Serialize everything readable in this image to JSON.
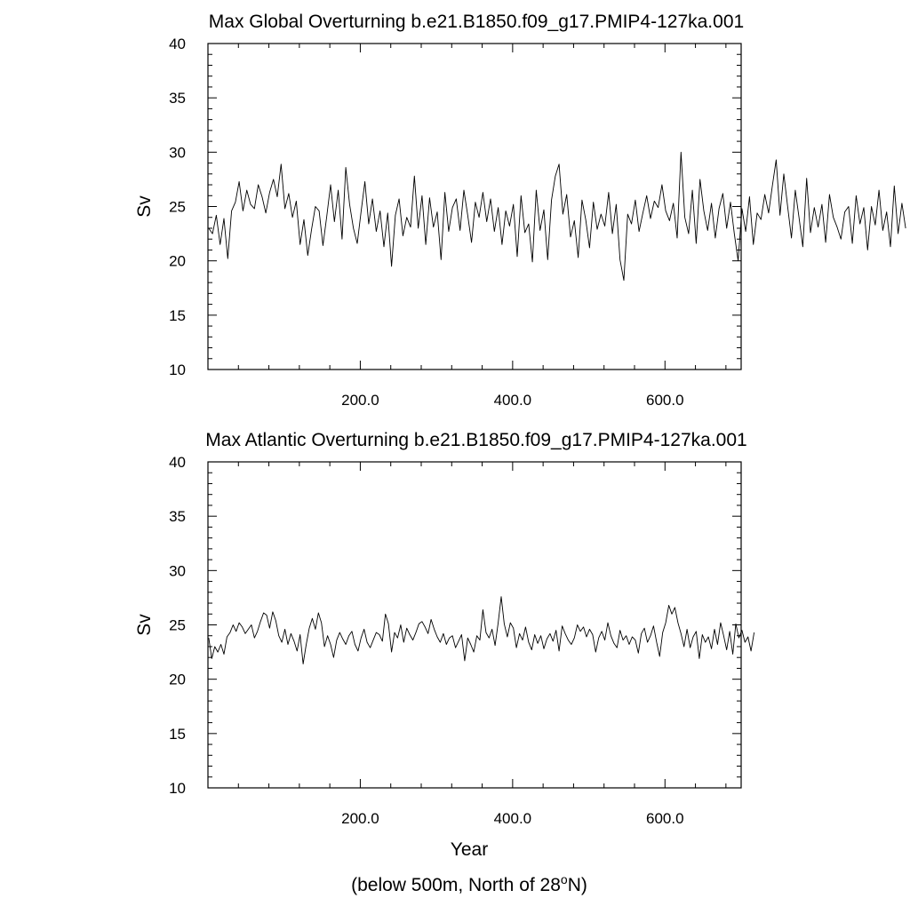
{
  "xlabel": "Year",
  "footer": {
    "prefix": "(below 500m, North of 28",
    "superscript": "o",
    "suffix": "N)"
  },
  "chart_data": [
    {
      "type": "line",
      "title": "Max Global Overturning b.e21.B1850.f09_g17.PMIP4-127ka.001",
      "ylabel": "Sv",
      "xlim": [
        0,
        700
      ],
      "ylim": [
        10,
        40
      ],
      "x_ticks": [
        200,
        400,
        600
      ],
      "x_tick_labels": [
        "200.0",
        "400.0",
        "600.0"
      ],
      "y_ticks": [
        10,
        15,
        20,
        25,
        30,
        35,
        40
      ],
      "y_tick_labels": [
        "10",
        "15",
        "20",
        "25",
        "30",
        "35",
        "40"
      ],
      "grid": false,
      "line_color": "#000000",
      "series": [
        {
          "x_start": 1,
          "x_step": 5,
          "values": [
            23.0,
            22.5,
            24.2,
            21.5,
            23.9,
            20.2,
            24.6,
            25.4,
            27.3,
            24.6,
            26.5,
            25.2,
            24.8,
            27.0,
            25.9,
            24.4,
            26.3,
            27.5,
            25.9,
            28.9,
            24.8,
            26.2,
            24.0,
            25.5,
            21.5,
            23.8,
            20.5,
            22.9,
            25.0,
            24.6,
            21.4,
            24.1,
            27.0,
            23.6,
            26.5,
            22.0,
            28.6,
            25.2,
            23.0,
            21.6,
            24.5,
            27.3,
            23.4,
            25.7,
            22.7,
            24.6,
            21.3,
            24.4,
            19.5,
            24.2,
            25.7,
            22.3,
            24.0,
            23.1,
            27.8,
            23.0,
            26.0,
            21.5,
            25.8,
            23.1,
            24.5,
            20.1,
            26.3,
            22.7,
            24.9,
            25.7,
            22.8,
            26.5,
            24.2,
            21.7,
            25.4,
            24.0,
            26.3,
            23.6,
            25.7,
            22.7,
            24.9,
            21.5,
            24.6,
            23.2,
            25.2,
            20.4,
            26.0,
            22.6,
            23.4,
            19.9,
            26.5,
            22.8,
            24.7,
            20.1,
            25.6,
            27.8,
            28.9,
            24.3,
            26.1,
            22.2,
            23.7,
            20.3,
            25.6,
            23.8,
            21.2,
            25.4,
            22.9,
            24.3,
            23.2,
            26.3,
            22.5,
            25.2,
            20.1,
            18.2,
            24.3,
            23.4,
            25.6,
            22.7,
            24.4,
            26.0,
            23.9,
            25.5,
            24.9,
            27.0,
            24.6,
            23.7,
            25.3,
            22.1,
            30.0,
            24.0,
            22.5,
            26.5,
            21.6,
            27.5,
            24.6,
            22.8,
            25.3,
            22.1,
            24.8,
            26.2,
            23.0,
            25.4,
            22.5,
            20.0,
            24.8,
            22.7,
            25.9,
            21.5,
            24.4,
            23.8,
            26.1,
            24.4,
            26.9,
            29.3,
            24.2,
            28.0,
            25.0,
            22.1,
            26.5,
            24.0,
            21.3,
            27.6,
            22.6,
            24.9,
            23.1,
            25.2,
            21.7,
            26.1,
            24.0,
            23.1,
            22.0,
            24.5,
            25.0,
            21.6,
            26.0,
            23.4,
            24.9,
            21.0,
            25.0,
            23.3,
            26.5,
            22.8,
            24.5,
            21.3,
            26.9,
            22.5,
            25.3,
            23.0
          ]
        }
      ]
    },
    {
      "type": "line",
      "title": "Max Atlantic Overturning b.e21.B1850.f09_g17.PMIP4-127ka.001",
      "ylabel": "Sv",
      "xlim": [
        0,
        700
      ],
      "ylim": [
        10,
        40
      ],
      "x_ticks": [
        200,
        400,
        600
      ],
      "x_tick_labels": [
        "200.0",
        "400.0",
        "600.0"
      ],
      "y_ticks": [
        10,
        15,
        20,
        25,
        30,
        35,
        40
      ],
      "y_tick_labels": [
        "10",
        "15",
        "20",
        "25",
        "30",
        "35",
        "40"
      ],
      "grid": false,
      "line_color": "#000000",
      "series": [
        {
          "x_start": 1,
          "x_step": 4,
          "values": [
            23.8,
            21.9,
            23.0,
            22.5,
            23.2,
            22.3,
            23.9,
            24.3,
            25.0,
            24.4,
            25.2,
            24.8,
            24.2,
            24.6,
            25.0,
            23.8,
            24.4,
            25.3,
            26.1,
            25.9,
            24.7,
            26.2,
            25.4,
            24.0,
            23.4,
            24.6,
            23.2,
            24.2,
            23.5,
            22.6,
            24.1,
            21.4,
            23.2,
            24.7,
            25.6,
            24.6,
            26.1,
            25.2,
            23.0,
            24.0,
            23.2,
            22.0,
            23.6,
            24.3,
            23.7,
            23.2,
            24.0,
            24.4,
            23.2,
            22.6,
            23.8,
            24.6,
            23.4,
            22.9,
            23.6,
            24.3,
            24.1,
            23.5,
            26.0,
            25.1,
            22.5,
            24.3,
            23.8,
            25.0,
            23.4,
            24.7,
            24.1,
            23.6,
            24.3,
            25.1,
            25.3,
            24.8,
            24.2,
            25.5,
            24.6,
            23.9,
            23.4,
            24.2,
            23.2,
            23.8,
            24.0,
            22.9,
            23.5,
            24.1,
            21.7,
            23.8,
            23.2,
            22.5,
            24.0,
            23.6,
            26.4,
            24.3,
            23.8,
            24.6,
            23.1,
            25.2,
            27.6,
            25.1,
            23.9,
            25.2,
            24.7,
            22.9,
            24.2,
            23.6,
            24.8,
            23.4,
            22.7,
            24.1,
            23.3,
            24.0,
            22.8,
            23.7,
            24.2,
            23.5,
            24.5,
            22.6,
            24.9,
            24.2,
            23.6,
            23.2,
            23.8,
            25.0,
            24.4,
            24.8,
            23.9,
            24.6,
            24.1,
            22.5,
            23.8,
            24.4,
            23.6,
            25.2,
            24.0,
            23.3,
            22.9,
            24.5,
            23.6,
            24.0,
            23.2,
            23.9,
            23.6,
            22.4,
            24.2,
            24.7,
            23.4,
            24.0,
            24.9,
            23.4,
            22.1,
            24.3,
            25.2,
            26.8,
            26.0,
            26.6,
            25.2,
            24.2,
            23.0,
            24.6,
            22.9,
            23.9,
            24.4,
            21.9,
            24.1,
            23.4,
            23.9,
            22.8,
            24.6,
            23.2,
            25.2,
            24.0,
            22.7,
            24.4,
            22.3,
            25.1,
            23.8,
            24.5,
            23.4,
            23.9,
            22.6,
            24.3
          ]
        }
      ]
    }
  ]
}
